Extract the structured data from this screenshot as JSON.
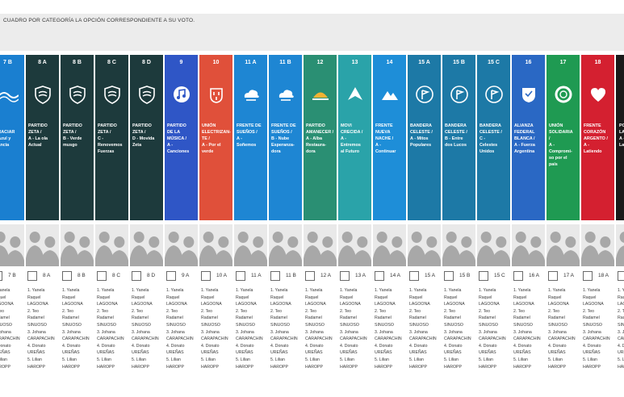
{
  "instruction": "CUADRO POR CATEGORÍA LA OPCIÓN CORRESPONDIENTE A SU VOTO.",
  "candidates_text": "1. Yanela\nRaquel\nLAGOONA\n2. Teo\nRadamel\nSINUOSO\n3. Johana\nCARAPACHIN\n4. Donato\nUREÑAS\n5. Lilian\nHAROPP",
  "colors": {
    "page": "#ffffff",
    "instruction_bar": "#ececec",
    "silhouette_bg": "#e9e9e9",
    "silhouette": "#a8a8a8"
  },
  "columns": [
    {
      "number": "7 B",
      "code": "7 B",
      "name": "…\n…RACIAR\n…Azul y\n…ancia",
      "color": "#1a7fd0",
      "icon": "wave-icon"
    },
    {
      "number": "8 A",
      "code": "8 A",
      "name": "PARTIDO\nZETA /\nA - La ola\nActual",
      "color": "#1d3a3c",
      "icon": "shield-icon"
    },
    {
      "number": "8 B",
      "code": "8 B",
      "name": "PARTIDO\nZETA /\nB - Verde\nmusgo",
      "color": "#1d3a3c",
      "icon": "shield-icon"
    },
    {
      "number": "8 C",
      "code": "8 C",
      "name": "PARTIDO\nZETA /\nC -\nRenovemos\nFuerzas",
      "color": "#1d3a3c",
      "icon": "shield-icon"
    },
    {
      "number": "8 D",
      "code": "8 D",
      "name": "PARTIDO\nZETA /\nD - Movida\nZeta",
      "color": "#1d3a3c",
      "icon": "shield-icon"
    },
    {
      "number": "9",
      "code": "9 A",
      "name": "PARTIDO\nDE LA\nMÚSICA /\nA -\nCanciones",
      "color": "#2f56c6",
      "icon": "music-note-icon"
    },
    {
      "number": "10",
      "code": "10 A",
      "name": "UNIÓN\nELECTRIZAN-\nTE /\nA - Por el\nverde",
      "color": "#e0503a",
      "icon": "plug-icon"
    },
    {
      "number": "11 A",
      "code": "11 A",
      "name": "FRENTE DE\nSUEÑOS /\nA -\nSoñemos",
      "color": "#1e86d3",
      "icon": "cloud-icon"
    },
    {
      "number": "11 B",
      "code": "11 B",
      "name": "FRENTE DE\nSUEÑOS /\nB - Nube\nEsperanza-\ndora",
      "color": "#1e86d3",
      "icon": "cloud-icon"
    },
    {
      "number": "12",
      "code": "12 A",
      "name": "PARTIDO\nAMANECER /\nA - Alba\nRestaura-\ndora",
      "color": "#2a8f73",
      "icon": "sunrise-icon"
    },
    {
      "number": "13",
      "code": "13 A",
      "name": "MOVI\nCRECIDA /\nA -\nEntremos\nal Futuro",
      "color": "#2aa3a9",
      "icon": "arrow-up-icon"
    },
    {
      "number": "14",
      "code": "14 A",
      "name": "FRENTE\nNUEVA\nNACHE /\nA -\nContinuar",
      "color": "#1e8ed8",
      "icon": "mountain-icon"
    },
    {
      "number": "15 A",
      "code": "15 A",
      "name": "BANDERA\nCELESTE /\nA - Mitos\nPopulares",
      "color": "#1d79a6",
      "icon": "flag-icon"
    },
    {
      "number": "15 B",
      "code": "15 B",
      "name": "BANDERA\nCELESTE /\nB - Entre\ndos Lucos",
      "color": "#1d79a6",
      "icon": "flag-icon"
    },
    {
      "number": "15 C",
      "code": "15 C",
      "name": "BANDERA\nCELESTE /\nC -\nCelestes\nUnidos",
      "color": "#1d79a6",
      "icon": "flag-icon"
    },
    {
      "number": "16",
      "code": "16 A",
      "name": "ALIANZA\nFEDERAL\nBLANCA /\nA - Fuerza\nArgentina",
      "color": "#2a68c4",
      "icon": "badge-icon"
    },
    {
      "number": "17",
      "code": "17 A",
      "name": "UNIÓN\nSOLIDARIA\n/\nA -\nCompromi-\nso por el\npaís",
      "color": "#1f9a52",
      "icon": "ring-icon"
    },
    {
      "number": "18",
      "code": "18 A",
      "name": "FRENTE\nCORAZÓN\nARGENTO /\nA -\nLatiendo",
      "color": "#d42030",
      "icon": "heart-icon"
    },
    {
      "number": "",
      "code": "",
      "name": "PO…\nLA…\nA -\nLa…",
      "color": "#1a1a1a",
      "icon": "circle-icon"
    }
  ]
}
